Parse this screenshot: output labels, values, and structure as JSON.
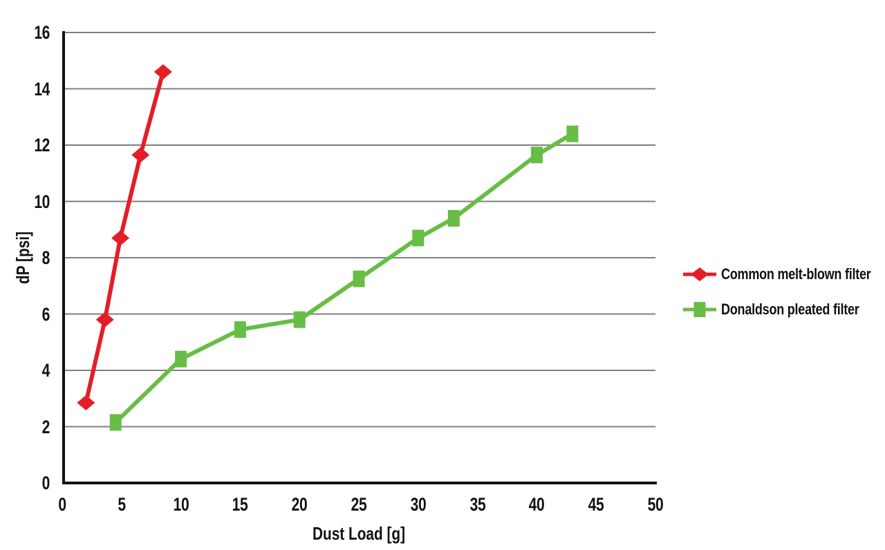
{
  "chart_data": {
    "type": "line",
    "title": "",
    "xlabel": "Dust Load [g]",
    "ylabel": "dP [psi]",
    "xlim": [
      0,
      50
    ],
    "ylim": [
      0,
      16
    ],
    "xticks": [
      0,
      5,
      10,
      15,
      20,
      25,
      30,
      35,
      40,
      45,
      50
    ],
    "yticks": [
      0,
      2,
      4,
      6,
      8,
      10,
      12,
      14,
      16
    ],
    "grid": "horizontal-only",
    "legend_position": "right",
    "series": [
      {
        "name": "Common melt-blown filter",
        "color": "#E31E26",
        "marker": "diamond",
        "points": [
          [
            2,
            2.85
          ],
          [
            3.6,
            5.8
          ],
          [
            4.9,
            8.7
          ],
          [
            6.6,
            11.65
          ],
          [
            8.5,
            14.6
          ]
        ]
      },
      {
        "name": "Donaldson pleated filter",
        "color": "#67BD45",
        "marker": "square",
        "points": [
          [
            4.5,
            2.15
          ],
          [
            10,
            4.4
          ],
          [
            15,
            5.45
          ],
          [
            20,
            5.8
          ],
          [
            25,
            7.25
          ],
          [
            30,
            8.7
          ],
          [
            33,
            9.4
          ],
          [
            40,
            11.65
          ],
          [
            43,
            12.4
          ]
        ]
      }
    ],
    "colors": {
      "gridline": "#7F7F7F",
      "axis": "#111111",
      "text": "#111111",
      "background": "#FFFFFF"
    }
  }
}
